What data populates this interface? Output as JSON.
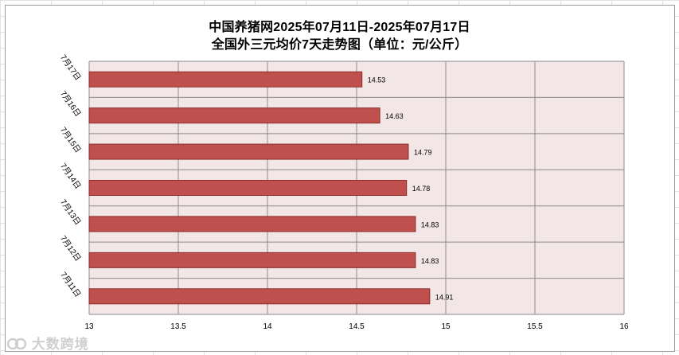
{
  "chart_data": {
    "type": "bar",
    "orientation": "horizontal",
    "title": "中国养猪网2025年07月11日-2025年07月17日",
    "subtitle": "全国外三元均价7天走势图（单位：元/公斤）",
    "categories": [
      "7月17日",
      "7月16日",
      "7月15日",
      "7月14日",
      "7月13日",
      "7月12日",
      "7月11日"
    ],
    "values": [
      14.53,
      14.63,
      14.79,
      14.78,
      14.83,
      14.83,
      14.91
    ],
    "value_labels": [
      "14.53",
      "14.63",
      "14.79",
      "14.78",
      "14.83",
      "14.83",
      "14.91"
    ],
    "xlim": [
      13,
      16
    ],
    "x_ticks": [
      "13",
      "13.5",
      "14",
      "14.5",
      "15",
      "15.5",
      "16"
    ],
    "x_tick_values": [
      13,
      13.5,
      14,
      14.5,
      15,
      15.5,
      16
    ],
    "grid": true,
    "colors": {
      "bar_fill": "#c0504d",
      "bar_stroke": "#8c2d2a",
      "plot_bg": "#f2e6e6",
      "grid": "#8c8c8c"
    }
  },
  "watermark": {
    "text": "大数跨境"
  }
}
